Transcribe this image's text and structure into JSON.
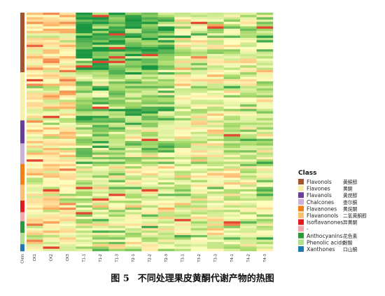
{
  "caption": {
    "fig_no": "图 5",
    "text": "不同处理果皮黄酮代谢产物的热图"
  },
  "chart_data": {
    "type": "heatmap",
    "title": "",
    "xlabel": "",
    "ylabel": "",
    "columns": [
      "CK1",
      "CK2",
      "CK3",
      "T1-1",
      "T1-2",
      "T1-3",
      "T2-1",
      "T2-2",
      "T2-3",
      "T3-1",
      "T3-2",
      "T3-3",
      "T4-1",
      "T4-2",
      "T4-3"
    ],
    "row_count": 104,
    "column_annotation_label": "Class",
    "legend": {
      "title": "Class",
      "position": "right",
      "items": [
        {
          "name": "Flavonols",
          "zh": "黄酮醇",
          "color": "#a8542b",
          "rows": 26
        },
        {
          "name": "Flavones",
          "zh": "黄酮",
          "color": "#f7f1a6",
          "rows": 21
        },
        {
          "name": "Flavanols",
          "zh": "黄烷醇",
          "color": "#6a3d9a",
          "rows": 10
        },
        {
          "name": "Chalcones",
          "zh": "查尔酮",
          "color": "#c9b2d6",
          "rows": 9
        },
        {
          "name": "Flavanones",
          "zh": "黄烷酮",
          "color": "#f57f17",
          "rows": 9
        },
        {
          "name": "Flavanonols",
          "zh": "二氢黄酮醇",
          "color": "#fdbf6f",
          "rows": 7
        },
        {
          "name": "Isoflavanones",
          "zh": "异黄酮",
          "color": "#e31a1c",
          "rows": 5
        },
        {
          "name": "-",
          "zh": "",
          "color": "#f7a6ab",
          "rows": 4
        },
        {
          "name": "Anthocyanins",
          "zh": "花色素",
          "color": "#2a9a3c",
          "rows": 5
        },
        {
          "name": "Phenolic acids",
          "zh": "酚酸",
          "color": "#b2df8a",
          "rows": 5
        },
        {
          "name": "Xanthones",
          "zh": "口山酮",
          "color": "#1f78b4",
          "rows": 3
        }
      ]
    },
    "color_scale": [
      "#1a9641",
      "#a6d96a",
      "#ffffbf",
      "#fdae61",
      "#d7191c"
    ],
    "value_range": [
      -2,
      2
    ]
  }
}
